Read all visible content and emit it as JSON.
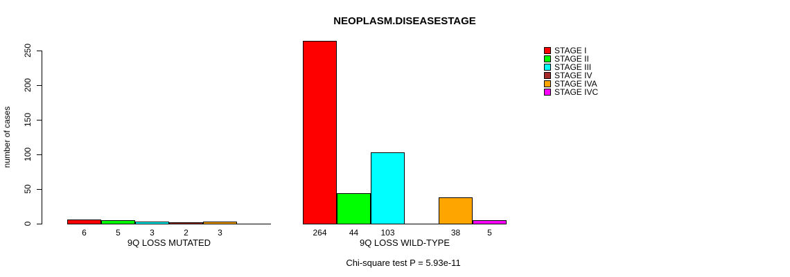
{
  "chart_data": {
    "type": "bar",
    "title": "NEOPLASM.DISEASESTAGE",
    "ylabel": "number of cases",
    "ylim": [
      0,
      250
    ],
    "yticks": [
      0,
      50,
      100,
      150,
      200,
      250
    ],
    "grid": false,
    "legend_position": "right",
    "categories": [
      "9Q LOSS MUTATED",
      "9Q LOSS WILD-TYPE"
    ],
    "legend": [
      {
        "label": "STAGE I",
        "color": "#FF0000"
      },
      {
        "label": "STAGE II",
        "color": "#00FF00"
      },
      {
        "label": "STAGE III",
        "color": "#00FFFF"
      },
      {
        "label": "STAGE IV",
        "color": "#A52A2A"
      },
      {
        "label": "STAGE IVA",
        "color": "#FFA500"
      },
      {
        "label": "STAGE IVC",
        "color": "#FF00FF"
      }
    ],
    "series": [
      {
        "name": "STAGE I",
        "values": [
          6,
          264
        ]
      },
      {
        "name": "STAGE II",
        "values": [
          5,
          44
        ]
      },
      {
        "name": "STAGE III",
        "values": [
          3,
          103
        ]
      },
      {
        "name": "STAGE IV",
        "values": [
          2,
          0
        ]
      },
      {
        "name": "STAGE IVA",
        "values": [
          3,
          38
        ]
      },
      {
        "name": "STAGE IVC",
        "values": [
          0,
          5
        ]
      }
    ],
    "bar_value_labels_shown": true,
    "footnote": "Chi-square test P = 5.93e-11"
  }
}
